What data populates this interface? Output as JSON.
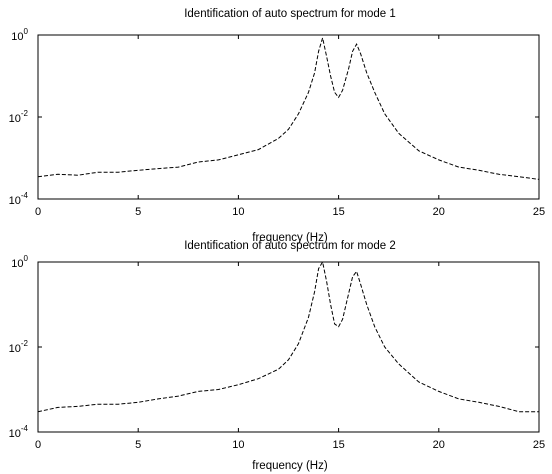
{
  "chart_data": [
    {
      "type": "line",
      "title": "Identification of auto spectrum for mode 1",
      "xlabel": "frequency (Hz)",
      "ylabel": "",
      "yscale": "log",
      "xlim": [
        0,
        25
      ],
      "ylim": [
        0.0001,
        1
      ],
      "grid": false,
      "x_ticks": [
        "0",
        "5",
        "10",
        "15",
        "20",
        "25"
      ],
      "y_ticks": [
        {
          "base": "10",
          "exp": "-4"
        },
        {
          "base": "10",
          "exp": "-2"
        },
        {
          "base": "10",
          "exp": "0"
        }
      ],
      "series": [
        {
          "style": "dashed",
          "x": [
            0,
            1,
            2,
            3,
            4,
            5,
            6,
            7,
            8,
            9,
            10,
            11,
            12,
            12.5,
            13,
            13.5,
            13.8,
            14.0,
            14.2,
            14.4,
            14.6,
            14.8,
            15.0,
            15.2,
            15.5,
            15.7,
            15.9,
            16.1,
            16.4,
            16.8,
            17.3,
            18,
            19,
            20,
            21,
            22,
            23,
            24,
            25
          ],
          "y": [
            0.00035,
            0.0004,
            0.00038,
            0.00045,
            0.00045,
            0.0005,
            0.00055,
            0.0006,
            0.0008,
            0.0009,
            0.0012,
            0.0016,
            0.003,
            0.005,
            0.012,
            0.04,
            0.12,
            0.4,
            0.85,
            0.3,
            0.1,
            0.04,
            0.03,
            0.045,
            0.15,
            0.4,
            0.6,
            0.35,
            0.12,
            0.04,
            0.012,
            0.004,
            0.0015,
            0.0009,
            0.0006,
            0.0005,
            0.0004,
            0.00035,
            0.0003
          ]
        }
      ]
    },
    {
      "type": "line",
      "title": "Identification of auto spectrum for mode 2",
      "xlabel": "frequency (Hz)",
      "ylabel": "",
      "yscale": "log",
      "xlim": [
        0,
        25
      ],
      "ylim": [
        0.0001,
        1
      ],
      "grid": false,
      "x_ticks": [
        "0",
        "5",
        "10",
        "15",
        "20",
        "25"
      ],
      "y_ticks": [
        {
          "base": "10",
          "exp": "-4"
        },
        {
          "base": "10",
          "exp": "-2"
        },
        {
          "base": "10",
          "exp": "0"
        }
      ],
      "series": [
        {
          "style": "dashed",
          "x": [
            0,
            1,
            2,
            3,
            4,
            5,
            6,
            7,
            8,
            9,
            10,
            11,
            12,
            12.5,
            13,
            13.5,
            13.8,
            14.0,
            14.2,
            14.4,
            14.6,
            14.8,
            15.0,
            15.2,
            15.5,
            15.7,
            15.9,
            16.1,
            16.4,
            16.8,
            17.3,
            18,
            19,
            20,
            21,
            22,
            23,
            24,
            25
          ],
          "y": [
            0.0003,
            0.00038,
            0.0004,
            0.00045,
            0.00045,
            0.0005,
            0.0006,
            0.0007,
            0.0009,
            0.001,
            0.0013,
            0.0018,
            0.003,
            0.005,
            0.012,
            0.05,
            0.2,
            0.7,
            1.0,
            0.35,
            0.1,
            0.035,
            0.03,
            0.045,
            0.18,
            0.45,
            0.6,
            0.3,
            0.1,
            0.03,
            0.01,
            0.004,
            0.0015,
            0.0009,
            0.0006,
            0.0005,
            0.0004,
            0.0003,
            0.0003
          ]
        }
      ]
    }
  ]
}
